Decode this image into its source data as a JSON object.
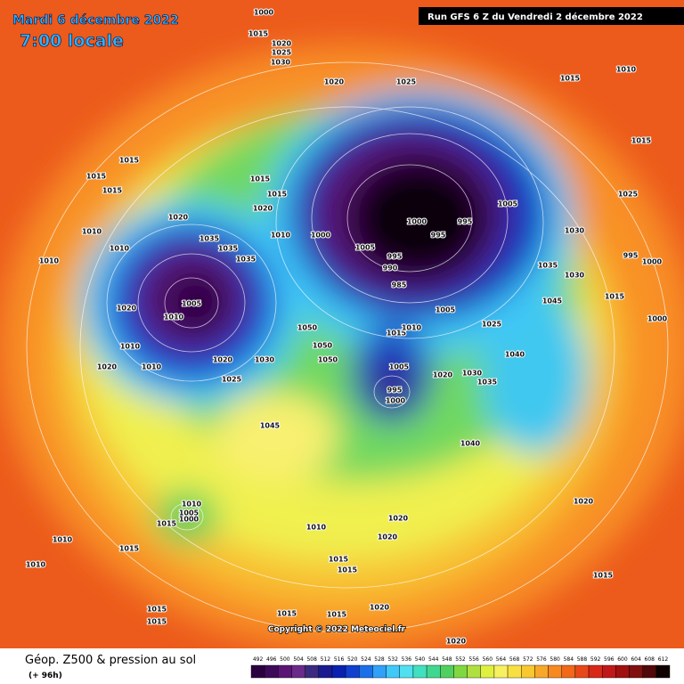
{
  "header": {
    "date": "Mardi 6 décembre 2022",
    "time": "7:00 locale",
    "run": "Run GFS 6 Z du Vendredi 2 décembre 2022"
  },
  "footer": {
    "title": "Géop. Z500 & pression au sol",
    "lead": "(+ 96h)",
    "copyright": "Copyright © 2022 Meteociel.fr"
  },
  "pressure_labels": [
    1000,
    1015,
    1020,
    1025,
    1030,
    1020,
    1025,
    1010,
    1015,
    1015,
    1025,
    1015,
    1015,
    1015,
    1015,
    1015,
    1020,
    1020,
    1010,
    1010,
    1010,
    1035,
    1035,
    1035,
    1005,
    1010,
    1020,
    1010,
    1020,
    1010,
    1020,
    1025,
    1030,
    1045,
    1010,
    1000,
    1005,
    1000,
    995,
    995,
    995,
    990,
    985,
    1005,
    1030,
    1035,
    1030,
    1045,
    1015,
    995,
    1000,
    1000,
    1005,
    1025,
    1050,
    1050,
    1050,
    1015,
    1010,
    1040,
    1030,
    1035,
    1020,
    1005,
    995,
    1000,
    1040,
    1020,
    1020,
    1010,
    1020,
    1015,
    1010,
    1010,
    1015,
    1015,
    1015,
    1020,
    1015,
    1015,
    1015,
    1015,
    1015,
    1020,
    1010,
    1005,
    1000
  ],
  "scale": {
    "labels": [
      492,
      496,
      500,
      504,
      508,
      512,
      516,
      520,
      524,
      528,
      532,
      536,
      540,
      544,
      548,
      552,
      556,
      560,
      564,
      568,
      572,
      576,
      580,
      584,
      588,
      592,
      596,
      600,
      604,
      608,
      612
    ],
    "colors": [
      "#2a0040",
      "#3d0a5a",
      "#5a1475",
      "#6a2a8a",
      "#3a2a80",
      "#1a1a90",
      "#0a20b0",
      "#1040d0",
      "#1a70e8",
      "#30a0f8",
      "#40c8f8",
      "#50e0f0",
      "#40e0c0",
      "#40d890",
      "#50d060",
      "#80d840",
      "#b0e040",
      "#e0f040",
      "#f8f060",
      "#f8e040",
      "#f8c830",
      "#f8a828",
      "#f88820",
      "#f06818",
      "#e84818",
      "#d82818",
      "#c01818",
      "#a01010",
      "#801010",
      "#500808",
      "#100000"
    ]
  }
}
